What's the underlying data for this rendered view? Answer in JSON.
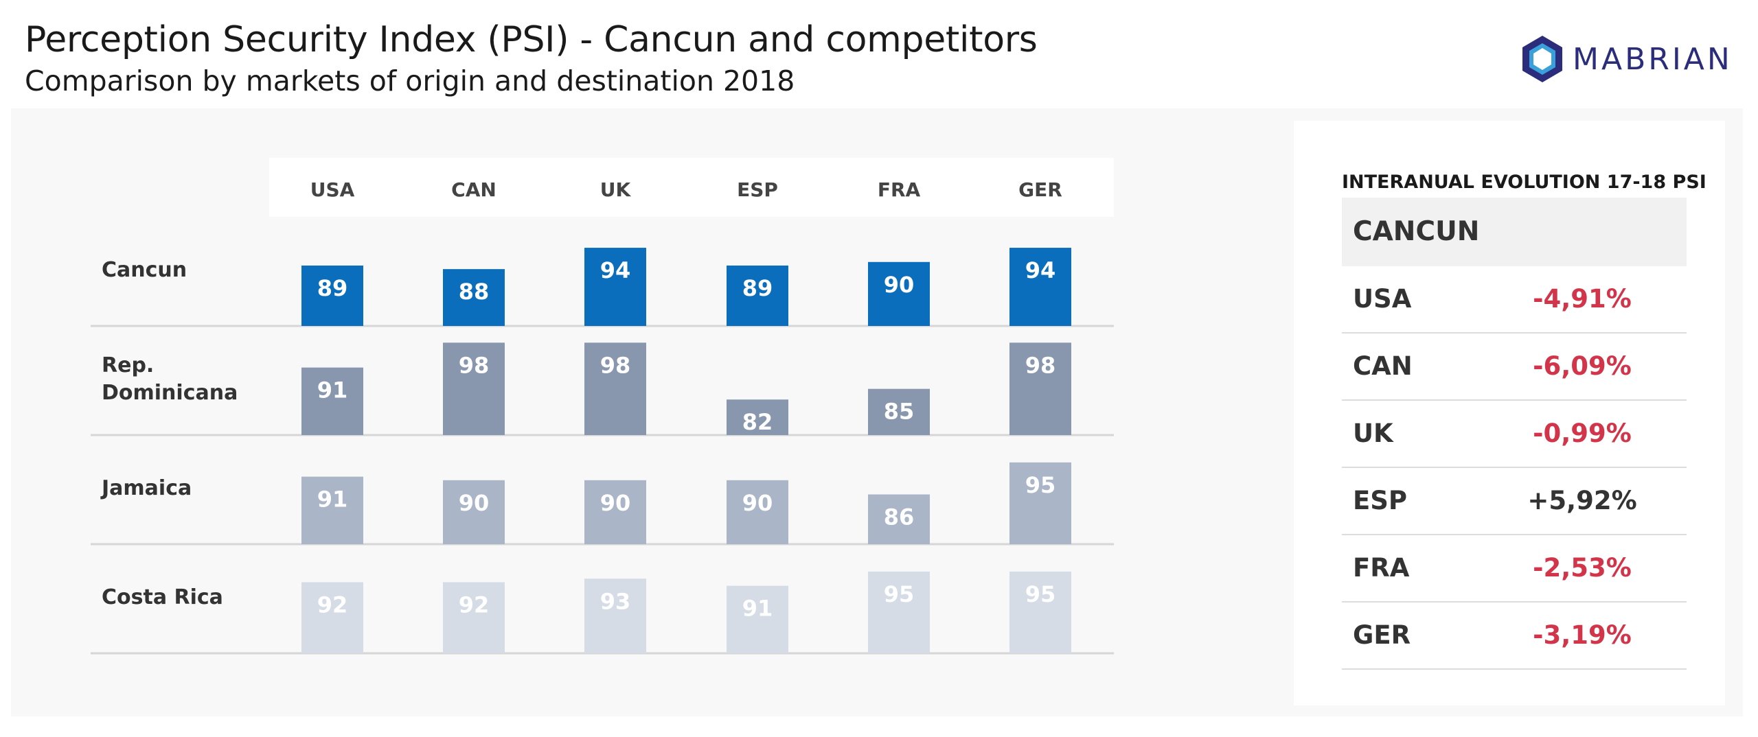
{
  "header": {
    "title": "Perception Security Index (PSI) - Cancun and competitors",
    "subtitle": "Comparison by markets of origin and destination 2018"
  },
  "logo": {
    "text": "MABRIAN",
    "color": "#2b2d7c",
    "accent": "#3aa0dc"
  },
  "chart_data": {
    "type": "bar",
    "categories": [
      "USA",
      "CAN",
      "UK",
      "ESP",
      "FRA",
      "GER"
    ],
    "series": [
      {
        "name": "Cancun",
        "label_lines": [
          "Cancun"
        ],
        "values": [
          89,
          88,
          94,
          89,
          90,
          94
        ],
        "color": "#0a6ebd"
      },
      {
        "name": "Rep. Dominicana",
        "label_lines": [
          "Rep.",
          "Dominicana"
        ],
        "values": [
          91,
          98,
          98,
          82,
          85,
          98
        ],
        "color": "#8897ae"
      },
      {
        "name": "Jamaica",
        "label_lines": [
          "Jamaica"
        ],
        "values": [
          91,
          90,
          90,
          90,
          86,
          95
        ],
        "color": "#aab5c8"
      },
      {
        "name": "Costa Rica",
        "label_lines": [
          "Costa Rica"
        ],
        "values": [
          92,
          92,
          93,
          91,
          95,
          95
        ],
        "color": "#d6dce6"
      }
    ],
    "ylim": [
      72,
      100
    ],
    "grid": false,
    "legend": "none"
  },
  "evolution": {
    "title": "INTERANUAL EVOLUTION 17-18 PSI",
    "destination": "CANCUN",
    "rows": [
      {
        "market": "USA",
        "value": "-4,91%",
        "color": "#d2354a"
      },
      {
        "market": "CAN",
        "value": "-6,09%",
        "color": "#d2354a"
      },
      {
        "market": "UK",
        "value": "-0,99%",
        "color": "#d2354a"
      },
      {
        "market": "ESP",
        "value": "+5,92%",
        "color": "#333333"
      },
      {
        "market": "FRA",
        "value": "-2,53%",
        "color": "#d2354a"
      },
      {
        "market": "GER",
        "value": "-3,19%",
        "color": "#d2354a"
      }
    ]
  }
}
